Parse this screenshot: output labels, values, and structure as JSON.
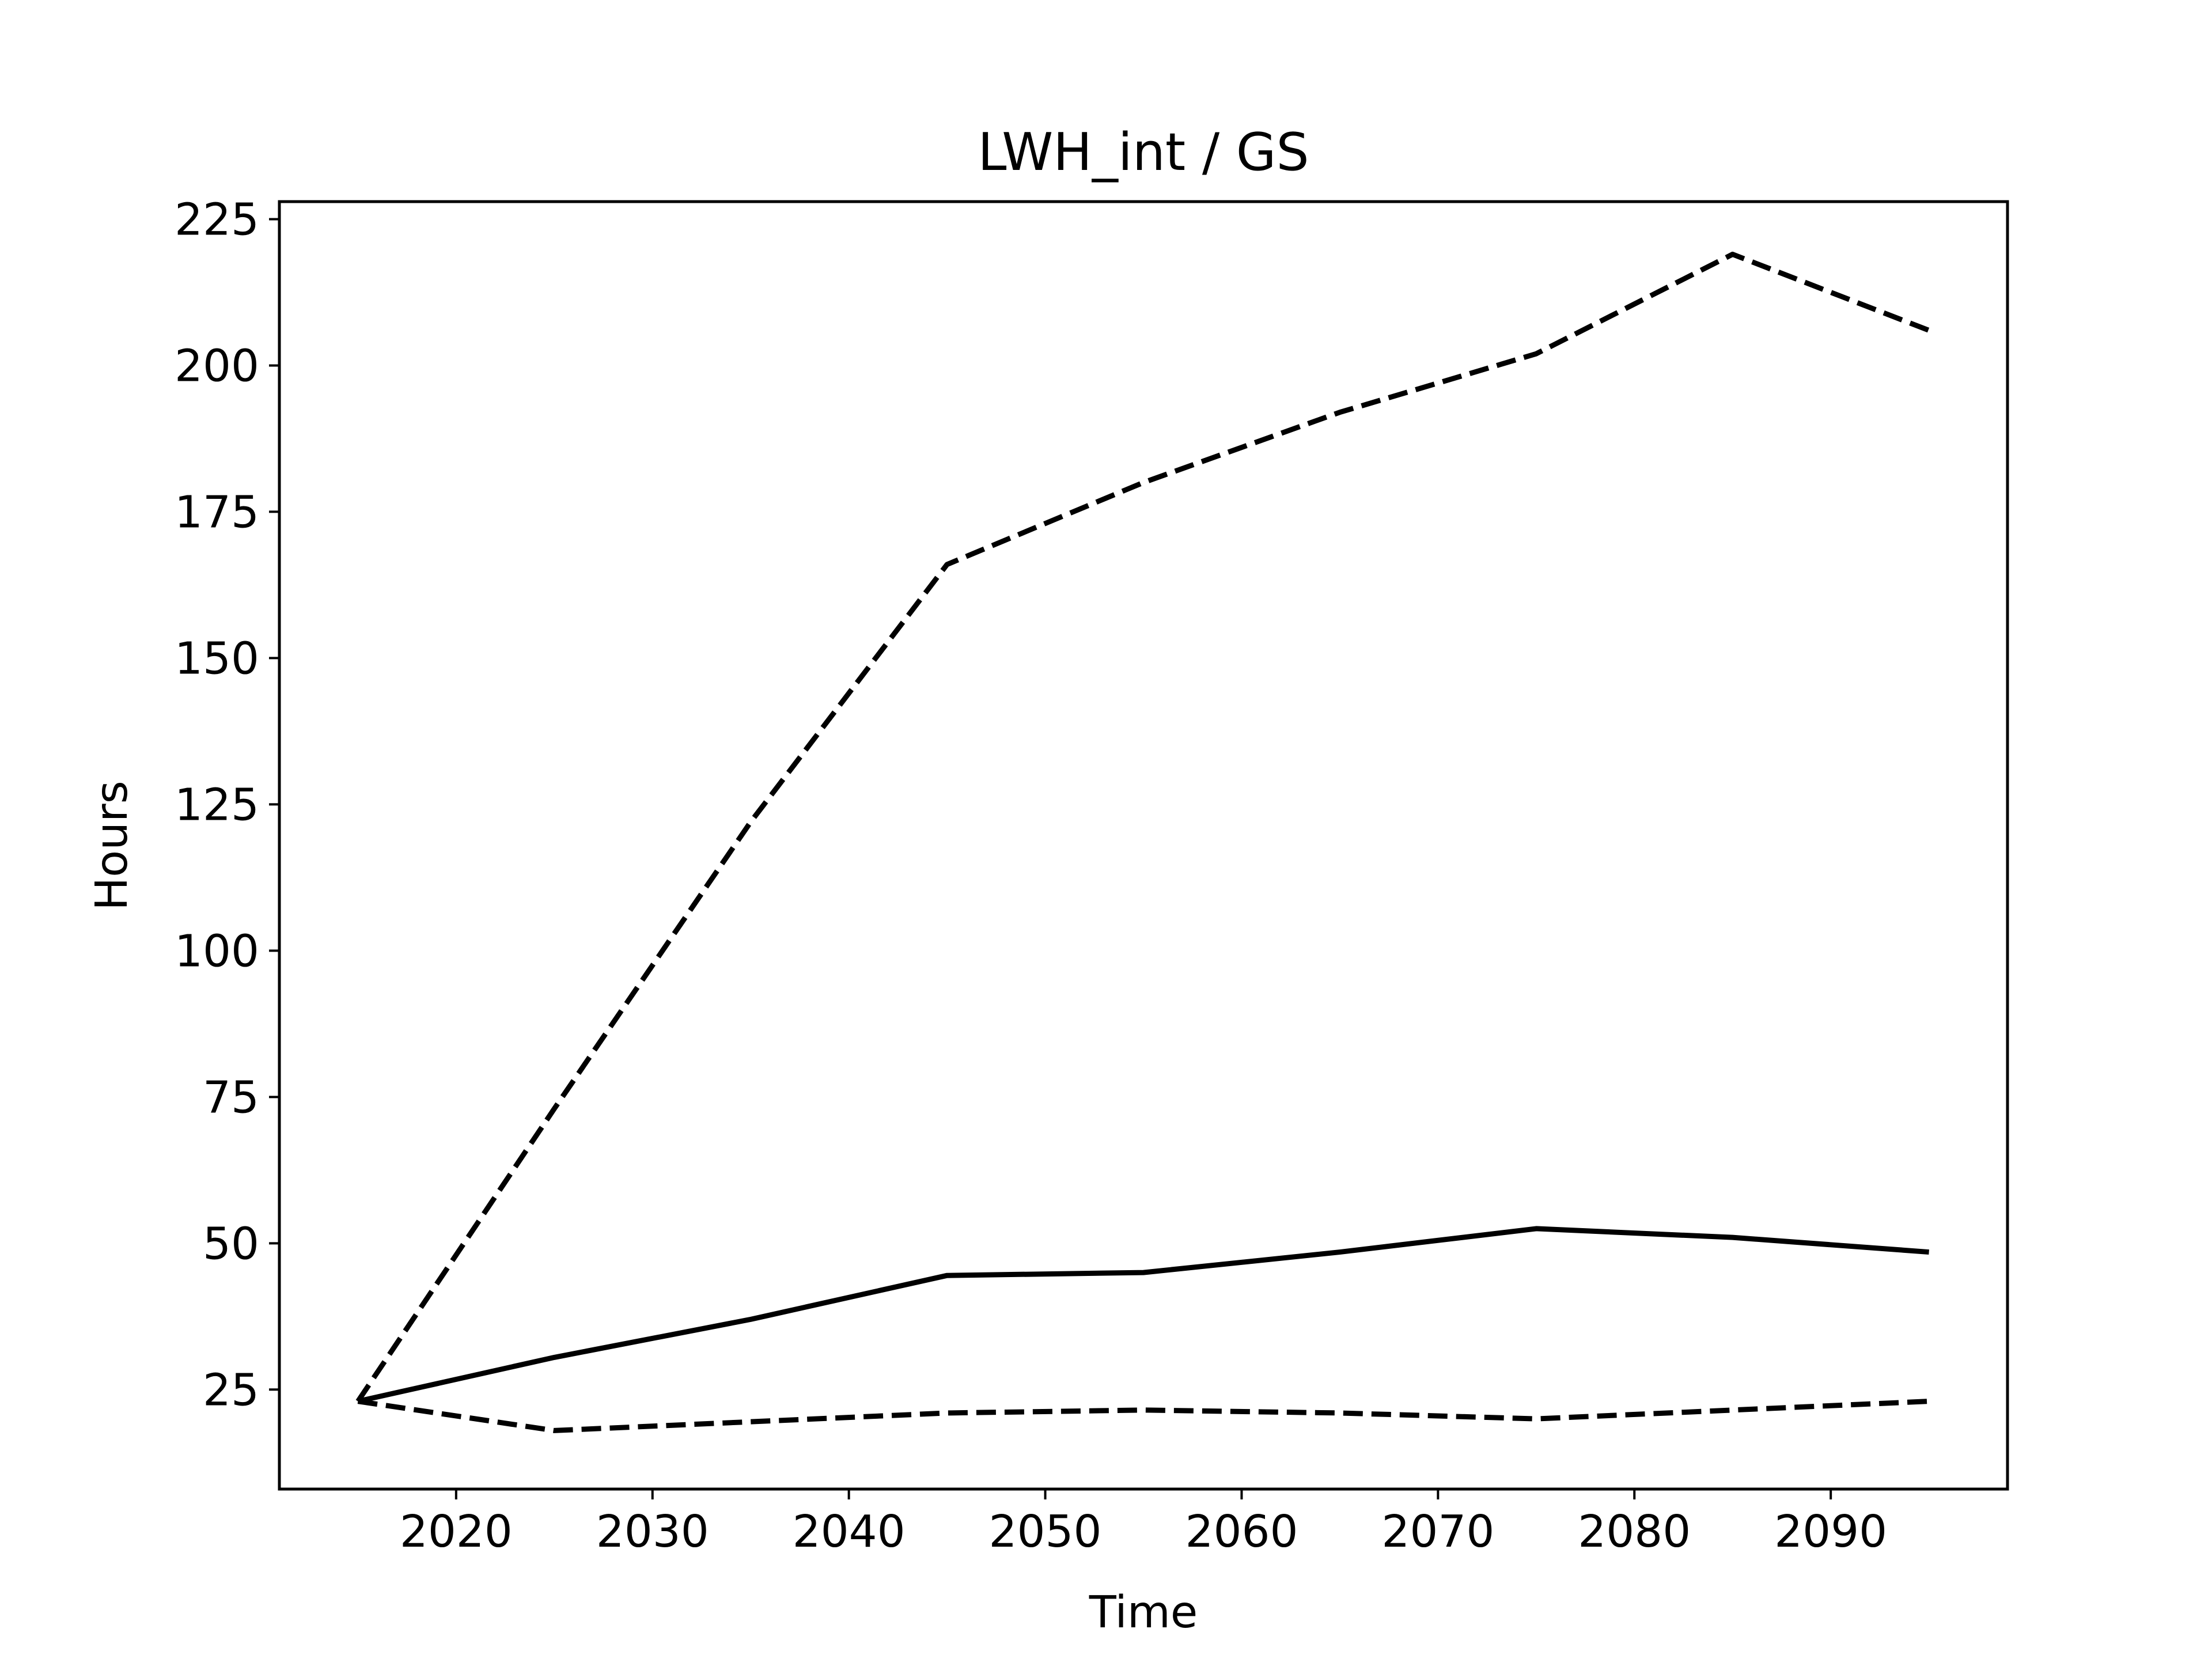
{
  "chart_data": {
    "type": "line",
    "title": "LWH_int / GS",
    "xlabel": "Time",
    "ylabel": "Hours",
    "xlim": [
      2011,
      2099
    ],
    "ylim": [
      8,
      228
    ],
    "xticks": [
      2020,
      2030,
      2040,
      2050,
      2060,
      2070,
      2080,
      2090
    ],
    "yticks": [
      25,
      50,
      75,
      100,
      125,
      150,
      175,
      200,
      225
    ],
    "grid": false,
    "legend": "none",
    "series": [
      {
        "style": "dashed",
        "color": "#000000",
        "x": [
          2015,
          2025,
          2035,
          2045,
          2055,
          2065,
          2075,
          2085,
          2095
        ],
        "y": [
          23,
          73,
          122,
          166,
          180,
          192,
          202,
          219,
          206
        ]
      },
      {
        "style": "solid",
        "color": "#000000",
        "x": [
          2015,
          2025,
          2035,
          2045,
          2055,
          2065,
          2075,
          2085,
          2095
        ],
        "y": [
          23,
          30.5,
          37,
          44.5,
          45,
          48.5,
          52.5,
          51,
          48.5
        ]
      },
      {
        "style": "dashed",
        "color": "#000000",
        "x": [
          2015,
          2025,
          2035,
          2045,
          2055,
          2065,
          2075,
          2085,
          2095
        ],
        "y": [
          23,
          18,
          19.5,
          21,
          21.5,
          21,
          20,
          21.5,
          23
        ]
      }
    ]
  }
}
